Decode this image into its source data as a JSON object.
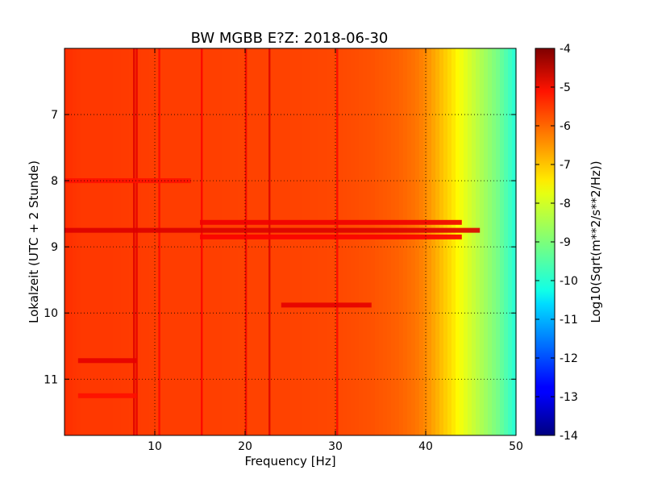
{
  "chart_data": {
    "type": "heatmap",
    "title": "BW MGBB E?Z: 2018-06-30",
    "xlabel": "Frequency [Hz]",
    "ylabel": "Lokalzeit (UTC + 2 Stunde)",
    "xlim": [
      0,
      50
    ],
    "ylim": [
      6.0,
      11.85
    ],
    "y_inverted": true,
    "grid": "dotted",
    "x_ticks": [
      "10",
      "20",
      "30",
      "40",
      "50"
    ],
    "x_tick_values": [
      10,
      20,
      30,
      40,
      50
    ],
    "y_ticks": [
      "7",
      "8",
      "9",
      "10",
      "11"
    ],
    "y_tick_values": [
      7,
      8,
      9,
      10,
      11
    ],
    "colorbar": {
      "label": "Log10(Sqrt(m**2/s**2/Hz))",
      "colormap": "jet",
      "range": [
        -14,
        -4
      ],
      "ticks": [
        "-4",
        "-5",
        "-6",
        "-7",
        "-8",
        "-9",
        "-10",
        "-11",
        "-12",
        "-13",
        "-14"
      ],
      "tick_values": [
        -4,
        -5,
        -6,
        -7,
        -8,
        -9,
        -10,
        -11,
        -12,
        -13,
        -14
      ]
    },
    "spectrum_profile": {
      "frequency_hz": [
        0,
        2,
        5,
        10,
        15,
        20,
        25,
        30,
        34,
        37,
        39,
        40,
        41,
        42,
        43,
        44,
        45,
        46,
        47,
        48,
        49,
        50
      ],
      "log10_amplitude": [
        -5.7,
        -5.8,
        -5.8,
        -5.85,
        -5.85,
        -5.9,
        -5.9,
        -5.95,
        -6.05,
        -6.2,
        -6.4,
        -6.6,
        -6.9,
        -7.2,
        -7.5,
        -7.9,
        -8.2,
        -8.5,
        -8.8,
        -9.1,
        -9.5,
        -9.9
      ]
    },
    "vertical_lines": [
      {
        "frequency_hz": 7.7,
        "value": -4.9
      },
      {
        "frequency_hz": 8.0,
        "value": -5.0
      },
      {
        "frequency_hz": 10.5,
        "value": -5.3
      },
      {
        "frequency_hz": 15.2,
        "value": -5.2
      },
      {
        "frequency_hz": 20.1,
        "value": -5.1
      },
      {
        "frequency_hz": 22.7,
        "value": -4.9
      },
      {
        "frequency_hz": 30.2,
        "value": -5.3
      }
    ],
    "horizontal_bands": [
      {
        "time": 8.75,
        "f_start": 0,
        "f_end": 46,
        "value": -4.9
      },
      {
        "time": 8.63,
        "f_start": 15,
        "f_end": 44,
        "value": -5.1
      },
      {
        "time": 8.85,
        "f_start": 15,
        "f_end": 44,
        "value": -5.2
      },
      {
        "time": 9.88,
        "f_start": 24,
        "f_end": 34,
        "value": -5.0
      },
      {
        "time": 10.72,
        "f_start": 1.5,
        "f_end": 8,
        "value": -5.0
      },
      {
        "time": 8.0,
        "f_start": 0,
        "f_end": 14,
        "value": -5.4
      },
      {
        "time": 11.25,
        "f_start": 1.5,
        "f_end": 8,
        "value": -5.4
      }
    ]
  }
}
